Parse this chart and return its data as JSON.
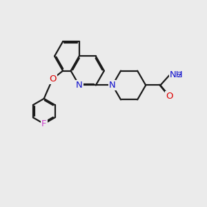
{
  "bg_color": "#ebebeb",
  "bond_color": "#1a1a1a",
  "bond_width": 1.6,
  "dbo": 0.055,
  "atom_colors": {
    "N": "#1010cc",
    "O": "#dd0000",
    "F": "#cc44cc",
    "H": "#4a9090",
    "C": "#1a1a1a"
  },
  "fs": 9.5
}
